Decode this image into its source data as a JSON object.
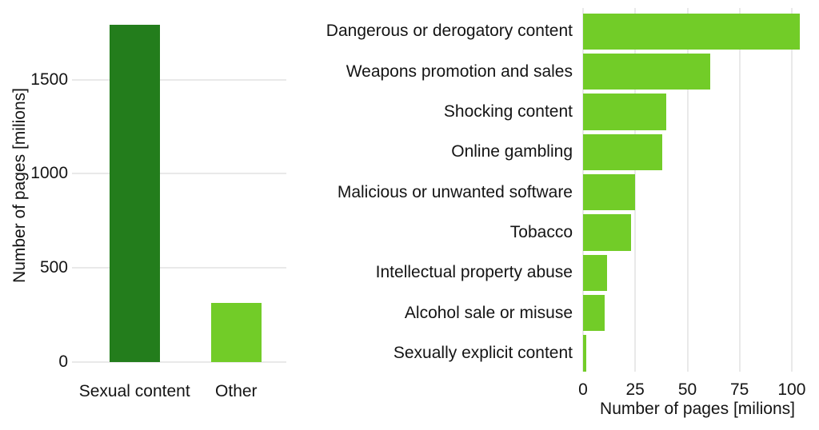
{
  "page": {
    "background": "#ffffff"
  },
  "style": {
    "gridline_color": "#e9e9e9",
    "text_color": "#141414",
    "dark_green": "#237d1c",
    "light_green": "#72cc28"
  },
  "chart_data": [
    {
      "type": "bar",
      "orientation": "vertical",
      "title": "",
      "categories": [
        "Sexual content",
        "Other"
      ],
      "values": [
        1790,
        315
      ],
      "bar_colors": [
        "#237d1c",
        "#72cc28"
      ],
      "xlabel": "",
      "ylabel": "Number of pages [milions]",
      "yticks": [
        0,
        500,
        1000,
        1500
      ],
      "ylim": [
        0,
        1880
      ],
      "grid": "horizontal-major-only",
      "legend": "none"
    },
    {
      "type": "bar",
      "orientation": "horizontal",
      "title": "",
      "categories": [
        "Dangerous or derogatory content",
        "Weapons promotion and sales",
        "Shocking content",
        "Online gambling",
        "Malicious or unwanted software",
        "Tobacco",
        "Intellectual property abuse",
        "Alcohol sale or misuse",
        "Sexually explicit content"
      ],
      "values": [
        104,
        61,
        40,
        38,
        25,
        23,
        11.5,
        10.5,
        1.5
      ],
      "bar_color": "#72cc28",
      "xlabel": "Number of pages [milions]",
      "ylabel": "",
      "xticks": [
        0,
        25,
        50,
        75,
        100
      ],
      "xlim": [
        0,
        109.6
      ],
      "grid": "vertical-major-only",
      "legend": "none"
    }
  ]
}
